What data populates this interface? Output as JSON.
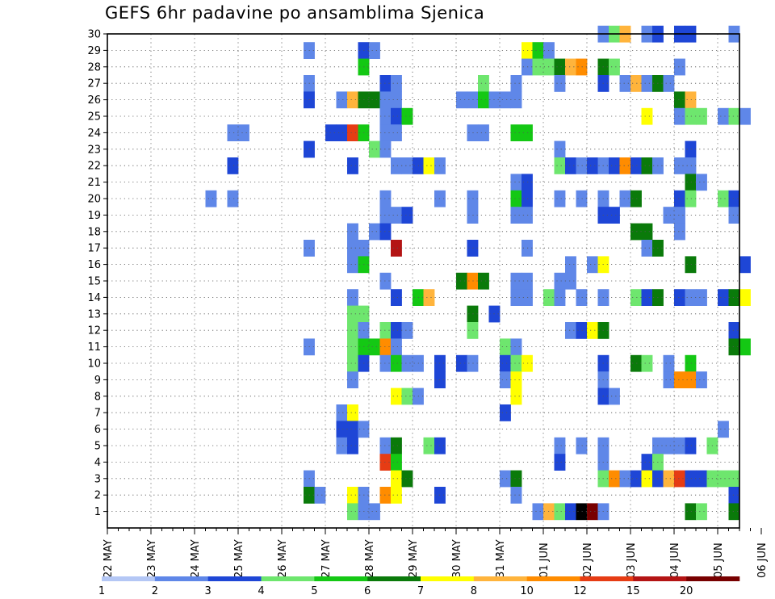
{
  "chart_data": {
    "type": "heatmap",
    "title": "GEFS 6hr padavine po ansamblima Sjenica",
    "xlabel": "",
    "ylabel": "",
    "x_tick_labels": [
      "22 MAY",
      "23 MAY",
      "24 MAY",
      "25 MAY",
      "26 MAY",
      "27 MAY",
      "28 MAY",
      "29 MAY",
      "30 MAY",
      "31 MAY",
      "01 JUN",
      "02 JUN",
      "03 JUN",
      "04 JUN",
      "05 JUN",
      "06 JUN"
    ],
    "x_range_steps": [
      0,
      58
    ],
    "y_tick_labels": [
      1,
      2,
      3,
      4,
      5,
      6,
      7,
      8,
      9,
      10,
      11,
      12,
      13,
      14,
      15,
      16,
      17,
      18,
      19,
      20,
      21,
      22,
      23,
      24,
      25,
      26,
      27,
      28,
      29,
      30
    ],
    "y_range": [
      0,
      30
    ],
    "grid": true,
    "colorbar": {
      "position": "bottom",
      "labels": [
        "1",
        "2",
        "3",
        "4",
        "5",
        "6",
        "7",
        "8",
        "10",
        "12",
        "15",
        "20"
      ],
      "bin_edges": [
        1,
        2,
        3,
        4,
        5,
        6,
        7,
        8,
        10,
        12,
        15,
        20
      ],
      "colors": [
        "#b4c7f5",
        "#5f87e8",
        "#1e46d6",
        "#6ee66e",
        "#14c814",
        "#0a7a0a",
        "#ffff00",
        "#ffb43c",
        "#ff8c00",
        "#e63c14",
        "#b41414",
        "#780000"
      ]
    },
    "cells_format": "[member, step_index_from_22_MAY_00UTC, colour_bin]",
    "cells": [
      [
        30,
        45,
        1
      ],
      [
        30,
        46,
        3
      ],
      [
        30,
        47,
        7
      ],
      [
        30,
        49,
        1
      ],
      [
        30,
        50,
        2
      ],
      [
        30,
        52,
        2
      ],
      [
        30,
        53,
        2
      ],
      [
        30,
        57,
        1
      ],
      [
        29,
        18,
        1
      ],
      [
        29,
        23,
        2
      ],
      [
        29,
        24,
        1
      ],
      [
        29,
        38,
        6
      ],
      [
        29,
        39,
        4
      ],
      [
        29,
        40,
        1
      ],
      [
        28,
        23,
        4
      ],
      [
        28,
        38,
        1
      ],
      [
        28,
        39,
        3
      ],
      [
        28,
        40,
        3
      ],
      [
        28,
        41,
        5
      ],
      [
        28,
        42,
        7
      ],
      [
        28,
        43,
        8
      ],
      [
        28,
        45,
        5
      ],
      [
        28,
        46,
        3
      ],
      [
        28,
        52,
        1
      ],
      [
        27,
        18,
        1
      ],
      [
        27,
        25,
        2
      ],
      [
        27,
        26,
        1
      ],
      [
        27,
        34,
        3
      ],
      [
        27,
        37,
        1
      ],
      [
        27,
        41,
        1
      ],
      [
        27,
        45,
        2
      ],
      [
        27,
        47,
        1
      ],
      [
        27,
        48,
        7
      ],
      [
        27,
        49,
        1
      ],
      [
        27,
        50,
        5
      ],
      [
        27,
        51,
        1
      ],
      [
        26,
        18,
        2
      ],
      [
        26,
        21,
        1
      ],
      [
        26,
        22,
        7
      ],
      [
        26,
        23,
        5
      ],
      [
        26,
        24,
        5
      ],
      [
        26,
        25,
        1
      ],
      [
        26,
        26,
        1
      ],
      [
        26,
        32,
        1
      ],
      [
        26,
        33,
        1
      ],
      [
        26,
        34,
        4
      ],
      [
        26,
        35,
        1
      ],
      [
        26,
        36,
        1
      ],
      [
        26,
        37,
        1
      ],
      [
        26,
        52,
        5
      ],
      [
        26,
        53,
        7
      ],
      [
        25,
        25,
        1
      ],
      [
        25,
        26,
        2
      ],
      [
        25,
        27,
        4
      ],
      [
        25,
        49,
        6
      ],
      [
        25,
        52,
        1
      ],
      [
        25,
        53,
        3
      ],
      [
        25,
        54,
        3
      ],
      [
        25,
        56,
        1
      ],
      [
        25,
        57,
        3
      ],
      [
        25,
        58,
        1
      ],
      [
        24,
        11,
        1
      ],
      [
        24,
        12,
        1
      ],
      [
        24,
        20,
        2
      ],
      [
        24,
        21,
        2
      ],
      [
        24,
        22,
        9
      ],
      [
        24,
        23,
        4
      ],
      [
        24,
        25,
        1
      ],
      [
        24,
        26,
        1
      ],
      [
        24,
        33,
        1
      ],
      [
        24,
        34,
        1
      ],
      [
        24,
        37,
        4
      ],
      [
        24,
        38,
        4
      ],
      [
        23,
        18,
        2
      ],
      [
        23,
        24,
        3
      ],
      [
        23,
        25,
        1
      ],
      [
        23,
        41,
        1
      ],
      [
        23,
        53,
        2
      ],
      [
        22,
        11,
        2
      ],
      [
        22,
        22,
        2
      ],
      [
        22,
        26,
        1
      ],
      [
        22,
        27,
        1
      ],
      [
        22,
        28,
        2
      ],
      [
        22,
        29,
        6
      ],
      [
        22,
        30,
        1
      ],
      [
        22,
        41,
        3
      ],
      [
        22,
        42,
        2
      ],
      [
        22,
        43,
        1
      ],
      [
        22,
        44,
        2
      ],
      [
        22,
        45,
        1
      ],
      [
        22,
        46,
        2
      ],
      [
        22,
        47,
        8
      ],
      [
        22,
        48,
        2
      ],
      [
        22,
        49,
        5
      ],
      [
        22,
        50,
        1
      ],
      [
        22,
        52,
        1
      ],
      [
        22,
        53,
        1
      ],
      [
        21,
        37,
        1
      ],
      [
        21,
        38,
        2
      ],
      [
        21,
        53,
        5
      ],
      [
        21,
        54,
        1
      ],
      [
        20,
        9,
        1
      ],
      [
        20,
        11,
        1
      ],
      [
        20,
        25,
        1
      ],
      [
        20,
        30,
        1
      ],
      [
        20,
        33,
        1
      ],
      [
        20,
        37,
        4
      ],
      [
        20,
        38,
        2
      ],
      [
        20,
        41,
        1
      ],
      [
        20,
        43,
        1
      ],
      [
        20,
        45,
        1
      ],
      [
        20,
        47,
        1
      ],
      [
        20,
        48,
        5
      ],
      [
        20,
        52,
        2
      ],
      [
        20,
        53,
        3
      ],
      [
        20,
        56,
        3
      ],
      [
        20,
        57,
        2
      ],
      [
        19,
        25,
        1
      ],
      [
        19,
        26,
        1
      ],
      [
        19,
        27,
        2
      ],
      [
        19,
        33,
        1
      ],
      [
        19,
        37,
        1
      ],
      [
        19,
        38,
        1
      ],
      [
        19,
        45,
        2
      ],
      [
        19,
        46,
        2
      ],
      [
        19,
        51,
        1
      ],
      [
        19,
        52,
        1
      ],
      [
        19,
        57,
        1
      ],
      [
        18,
        22,
        1
      ],
      [
        18,
        24,
        1
      ],
      [
        18,
        25,
        2
      ],
      [
        18,
        48,
        5
      ],
      [
        18,
        49,
        5
      ],
      [
        18,
        52,
        1
      ],
      [
        17,
        18,
        1
      ],
      [
        17,
        22,
        1
      ],
      [
        17,
        23,
        1
      ],
      [
        17,
        26,
        10
      ],
      [
        17,
        33,
        2
      ],
      [
        17,
        38,
        1
      ],
      [
        17,
        49,
        1
      ],
      [
        17,
        50,
        5
      ],
      [
        16,
        22,
        1
      ],
      [
        16,
        23,
        4
      ],
      [
        16,
        42,
        1
      ],
      [
        16,
        44,
        1
      ],
      [
        16,
        45,
        6
      ],
      [
        16,
        53,
        5
      ],
      [
        16,
        58,
        2
      ],
      [
        15,
        25,
        1
      ],
      [
        15,
        32,
        5
      ],
      [
        15,
        33,
        8
      ],
      [
        15,
        34,
        5
      ],
      [
        15,
        37,
        1
      ],
      [
        15,
        38,
        1
      ],
      [
        15,
        41,
        1
      ],
      [
        15,
        42,
        1
      ],
      [
        14,
        22,
        1
      ],
      [
        14,
        26,
        2
      ],
      [
        14,
        28,
        4
      ],
      [
        14,
        29,
        7
      ],
      [
        14,
        37,
        1
      ],
      [
        14,
        38,
        1
      ],
      [
        14,
        40,
        3
      ],
      [
        14,
        41,
        1
      ],
      [
        14,
        43,
        1
      ],
      [
        14,
        45,
        1
      ],
      [
        14,
        48,
        3
      ],
      [
        14,
        49,
        2
      ],
      [
        14,
        50,
        5
      ],
      [
        14,
        52,
        2
      ],
      [
        14,
        53,
        1
      ],
      [
        14,
        54,
        1
      ],
      [
        14,
        56,
        2
      ],
      [
        14,
        57,
        5
      ],
      [
        14,
        58,
        6
      ],
      [
        13,
        22,
        3
      ],
      [
        13,
        23,
        3
      ],
      [
        13,
        33,
        5
      ],
      [
        13,
        35,
        2
      ],
      [
        12,
        22,
        3
      ],
      [
        12,
        23,
        1
      ],
      [
        12,
        25,
        3
      ],
      [
        12,
        26,
        2
      ],
      [
        12,
        27,
        1
      ],
      [
        12,
        33,
        3
      ],
      [
        12,
        42,
        1
      ],
      [
        12,
        43,
        2
      ],
      [
        12,
        44,
        6
      ],
      [
        12,
        45,
        5
      ],
      [
        12,
        57,
        2
      ],
      [
        11,
        18,
        1
      ],
      [
        11,
        22,
        3
      ],
      [
        11,
        23,
        4
      ],
      [
        11,
        24,
        4
      ],
      [
        11,
        25,
        8
      ],
      [
        11,
        26,
        1
      ],
      [
        11,
        36,
        3
      ],
      [
        11,
        37,
        1
      ],
      [
        11,
        57,
        5
      ],
      [
        11,
        58,
        4
      ],
      [
        10,
        22,
        3
      ],
      [
        10,
        23,
        2
      ],
      [
        10,
        25,
        1
      ],
      [
        10,
        26,
        4
      ],
      [
        10,
        27,
        1
      ],
      [
        10,
        28,
        1
      ],
      [
        10,
        30,
        2
      ],
      [
        10,
        32,
        2
      ],
      [
        10,
        33,
        1
      ],
      [
        10,
        36,
        2
      ],
      [
        10,
        37,
        3
      ],
      [
        10,
        38,
        6
      ],
      [
        10,
        45,
        2
      ],
      [
        10,
        48,
        5
      ],
      [
        10,
        49,
        3
      ],
      [
        10,
        51,
        1
      ],
      [
        10,
        53,
        4
      ],
      [
        9,
        22,
        1
      ],
      [
        9,
        30,
        2
      ],
      [
        9,
        36,
        1
      ],
      [
        9,
        37,
        6
      ],
      [
        9,
        45,
        1
      ],
      [
        9,
        51,
        1
      ],
      [
        9,
        52,
        8
      ],
      [
        9,
        53,
        8
      ],
      [
        9,
        54,
        1
      ],
      [
        8,
        26,
        6
      ],
      [
        8,
        27,
        3
      ],
      [
        8,
        28,
        1
      ],
      [
        8,
        37,
        6
      ],
      [
        8,
        45,
        2
      ],
      [
        8,
        46,
        1
      ],
      [
        7,
        21,
        1
      ],
      [
        7,
        22,
        6
      ],
      [
        7,
        36,
        2
      ],
      [
        6,
        21,
        2
      ],
      [
        6,
        22,
        2
      ],
      [
        6,
        23,
        1
      ],
      [
        6,
        56,
        1
      ],
      [
        5,
        21,
        1
      ],
      [
        5,
        22,
        2
      ],
      [
        5,
        25,
        1
      ],
      [
        5,
        26,
        5
      ],
      [
        5,
        29,
        3
      ],
      [
        5,
        30,
        2
      ],
      [
        5,
        41,
        1
      ],
      [
        5,
        43,
        1
      ],
      [
        5,
        45,
        1
      ],
      [
        5,
        50,
        1
      ],
      [
        5,
        51,
        1
      ],
      [
        5,
        52,
        1
      ],
      [
        5,
        53,
        2
      ],
      [
        5,
        55,
        3
      ],
      [
        4,
        25,
        9
      ],
      [
        4,
        26,
        4
      ],
      [
        4,
        41,
        2
      ],
      [
        4,
        45,
        1
      ],
      [
        4,
        49,
        2
      ],
      [
        4,
        50,
        3
      ],
      [
        3,
        18,
        1
      ],
      [
        3,
        26,
        6
      ],
      [
        3,
        27,
        5
      ],
      [
        3,
        36,
        1
      ],
      [
        3,
        37,
        5
      ],
      [
        3,
        45,
        3
      ],
      [
        3,
        46,
        8
      ],
      [
        3,
        47,
        1
      ],
      [
        3,
        48,
        2
      ],
      [
        3,
        49,
        6
      ],
      [
        3,
        50,
        2
      ],
      [
        3,
        51,
        7
      ],
      [
        3,
        52,
        9
      ],
      [
        3,
        53,
        2
      ],
      [
        3,
        54,
        2
      ],
      [
        3,
        55,
        3
      ],
      [
        3,
        56,
        3
      ],
      [
        3,
        57,
        3
      ],
      [
        2,
        18,
        5
      ],
      [
        2,
        19,
        1
      ],
      [
        2,
        22,
        6
      ],
      [
        2,
        23,
        1
      ],
      [
        2,
        25,
        8
      ],
      [
        2,
        26,
        6
      ],
      [
        2,
        30,
        2
      ],
      [
        2,
        37,
        1
      ],
      [
        2,
        57,
        2
      ],
      [
        1,
        22,
        3
      ],
      [
        1,
        23,
        1
      ],
      [
        1,
        24,
        1
      ],
      [
        1,
        39,
        1
      ],
      [
        1,
        40,
        7
      ],
      [
        1,
        41,
        3
      ],
      [
        1,
        42,
        2
      ],
      [
        1,
        43,
        12
      ],
      [
        1,
        44,
        11
      ],
      [
        1,
        45,
        1
      ],
      [
        1,
        53,
        5
      ],
      [
        1,
        54,
        3
      ],
      [
        1,
        57,
        5
      ]
    ]
  }
}
